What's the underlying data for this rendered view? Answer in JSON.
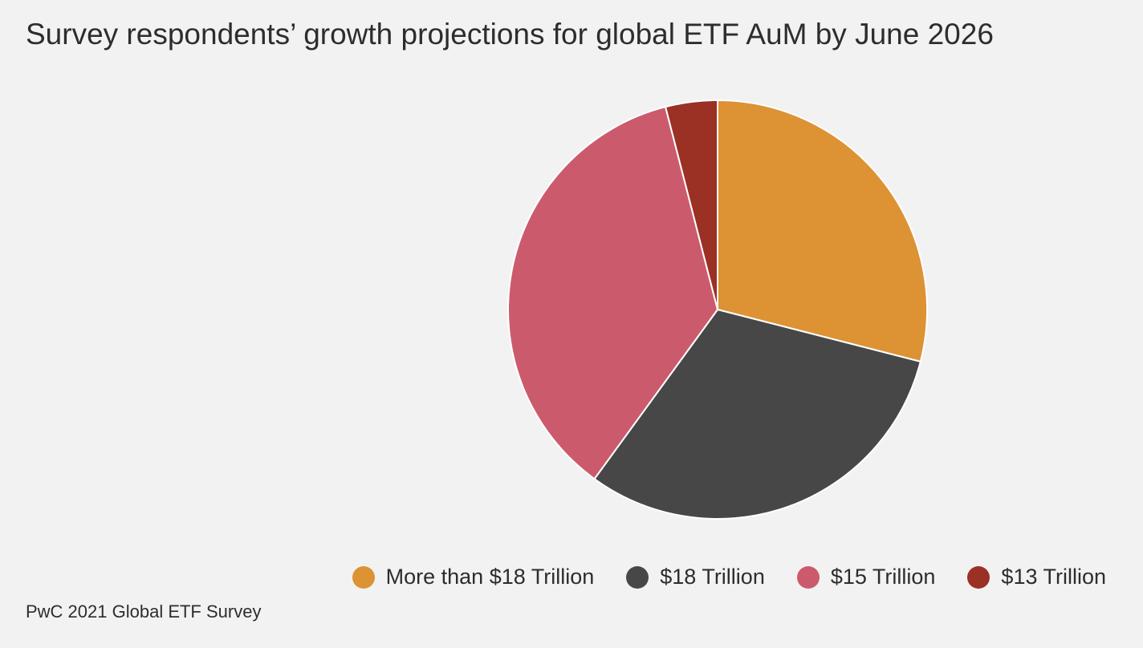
{
  "chart_data": {
    "type": "pie",
    "title": "Survey respondents’ growth projections for global ETF AuM by June 2026",
    "source": "PwC 2021 Global ETF Survey",
    "start_angle_deg": 0,
    "direction": "clockwise",
    "legend_position": "bottom-right",
    "slices": [
      {
        "label": "More than $18 Trillion",
        "value": 29,
        "color": "#dd9234"
      },
      {
        "label": "$18 Trillion",
        "value": 31,
        "color": "#474747"
      },
      {
        "label": "$15 Trillion",
        "value": 36,
        "color": "#cb5b6c"
      },
      {
        "label": "$13 Trillion",
        "value": 4,
        "color": "#9b3024"
      }
    ]
  }
}
